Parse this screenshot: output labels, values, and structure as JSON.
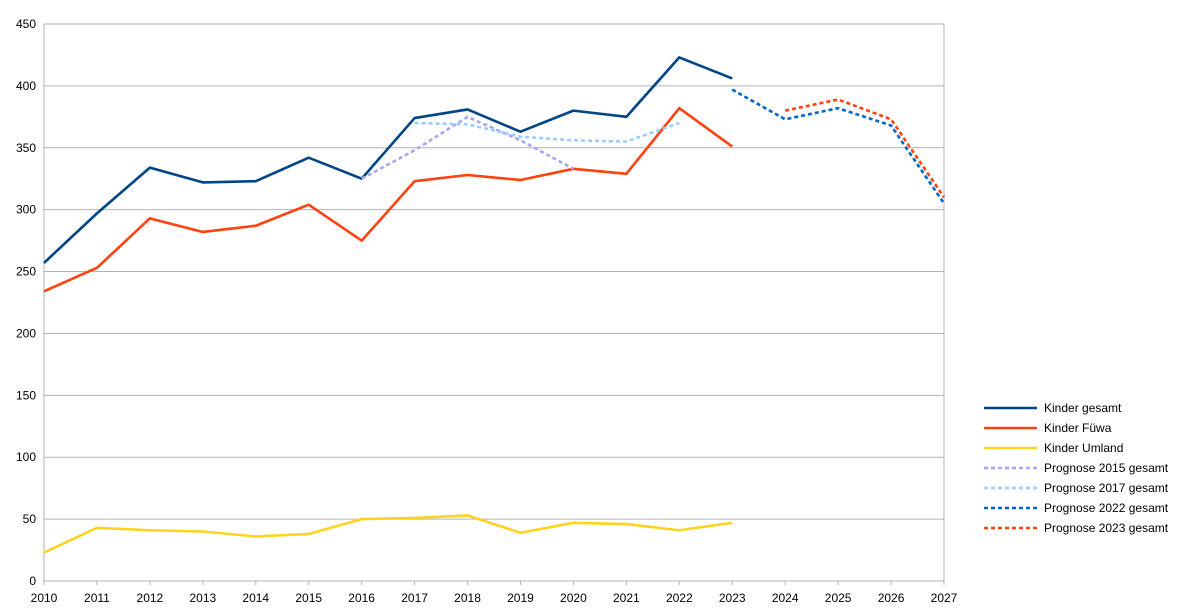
{
  "chart_data": {
    "type": "line",
    "x": [
      "2010",
      "2011",
      "2012",
      "2013",
      "2014",
      "2015",
      "2016",
      "2017",
      "2018",
      "2019",
      "2020",
      "2021",
      "2022",
      "2023",
      "2024",
      "2025",
      "2026",
      "2027"
    ],
    "ylim": [
      0,
      450
    ],
    "yticks": [
      0,
      50,
      100,
      150,
      200,
      250,
      300,
      350,
      400,
      450
    ],
    "grid": true,
    "legend_position": "right",
    "series": [
      {
        "name": "Kinder gesamt",
        "color": "#004586",
        "dashed": false,
        "values": [
          257,
          297,
          334,
          322,
          323,
          342,
          325,
          374,
          381,
          363,
          380,
          375,
          423,
          406,
          null,
          null,
          null,
          null
        ]
      },
      {
        "name": "Kinder Füwa",
        "color": "#ff420e",
        "dashed": false,
        "values": [
          234,
          253,
          293,
          282,
          287,
          304,
          275,
          323,
          328,
          324,
          333,
          329,
          382,
          351,
          null,
          null,
          null,
          null
        ]
      },
      {
        "name": "Kinder Umland",
        "color": "#ffd320",
        "dashed": false,
        "values": [
          23,
          43,
          41,
          40,
          36,
          38,
          50,
          51,
          53,
          39,
          47,
          46,
          41,
          47,
          null,
          null,
          null,
          null
        ]
      },
      {
        "name": "Prognose 2015 gesamt",
        "color": "#a6a6f2",
        "dashed": true,
        "values": [
          null,
          null,
          null,
          null,
          null,
          null,
          325,
          348,
          375,
          356,
          333,
          null,
          null,
          null,
          null,
          null,
          null,
          null
        ]
      },
      {
        "name": "Prognose 2017 gesamt",
        "color": "#99ccff",
        "dashed": true,
        "values": [
          null,
          null,
          null,
          null,
          null,
          null,
          null,
          370,
          369,
          359,
          356,
          355,
          370,
          null,
          null,
          null,
          null,
          null
        ]
      },
      {
        "name": "Prognose 2022 gesamt",
        "color": "#0066cc",
        "dashed": true,
        "values": [
          null,
          null,
          null,
          null,
          null,
          null,
          null,
          null,
          null,
          null,
          null,
          null,
          null,
          397,
          373,
          382,
          368,
          305
        ]
      },
      {
        "name": "Prognose 2023 gesamt",
        "color": "#ff420e",
        "dashed": true,
        "values": [
          null,
          null,
          null,
          null,
          null,
          null,
          null,
          null,
          null,
          null,
          null,
          null,
          null,
          null,
          380,
          389,
          373,
          310
        ]
      }
    ]
  }
}
